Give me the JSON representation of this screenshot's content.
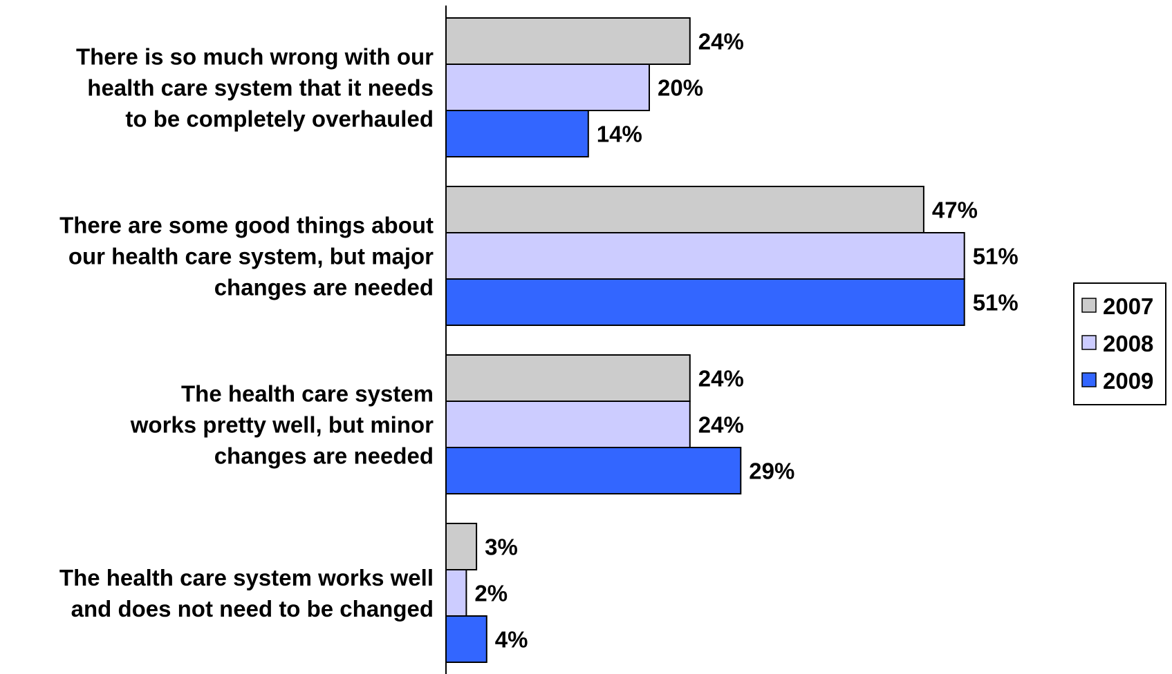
{
  "chart_data": {
    "type": "bar",
    "orientation": "horizontal",
    "categories": [
      [
        "There is so much wrong with our",
        "health care system that it needs",
        "to be completely overhauled"
      ],
      [
        "There are some good things about",
        "our health care system, but major",
        "changes are needed"
      ],
      [
        "The health care system",
        "works pretty well, but minor",
        "changes are needed"
      ],
      [
        "The health care system works well",
        "and does not need to be changed"
      ]
    ],
    "series": [
      {
        "name": "2007",
        "color": "#cccccc",
        "values": [
          24,
          47,
          24,
          3
        ]
      },
      {
        "name": "2008",
        "color": "#ccccff",
        "values": [
          20,
          51,
          24,
          2
        ]
      },
      {
        "name": "2009",
        "color": "#3366ff",
        "values": [
          14,
          51,
          29,
          4
        ]
      }
    ],
    "value_suffix": "%",
    "xlim": [
      0,
      100
    ],
    "grid": false,
    "legend_position": "right"
  }
}
